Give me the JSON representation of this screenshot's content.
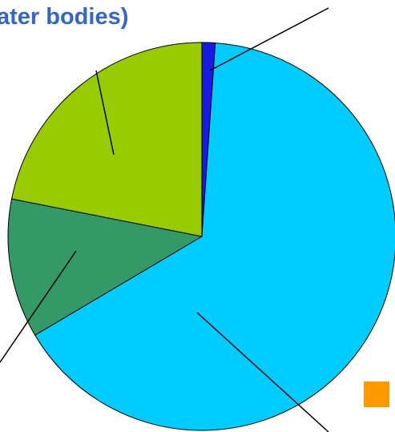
{
  "chart_data": {
    "type": "pie",
    "title": "ater bodies)",
    "categories": [
      null,
      null,
      null,
      null
    ],
    "values": [
      1.1,
      65.4,
      11.6,
      21.9
    ],
    "colors": [
      "#1a1ae6",
      "#00ccff",
      "#339966",
      "#99cc00"
    ]
  }
}
